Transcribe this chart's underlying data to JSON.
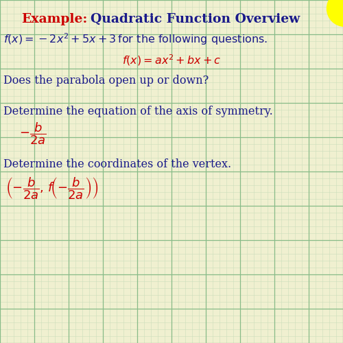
{
  "bg_color": "#f0f0d0",
  "grid_major_color": "#88bb88",
  "grid_minor_color": "#ccddbb",
  "title_example_color": "#cc0000",
  "title_main_color": "#1a1a8a",
  "red_color": "#cc0000",
  "dark_blue_color": "#1a1a8a",
  "yellow_circle_color": "#ffff00",
  "title_example": "Example:",
  "title_main": "Quadratic Function Overview",
  "q1_text": "Does the parabola open up or down?",
  "q2_text": "Determine the equation of the axis of symmetry.",
  "q3_text": "Determine the coordinates of the vertex.",
  "figsize": [
    5.0,
    5.0
  ],
  "dpi": 100
}
